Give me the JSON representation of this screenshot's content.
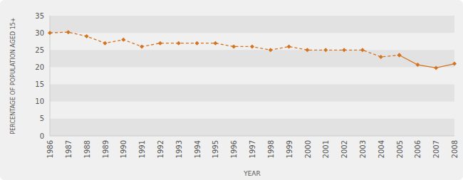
{
  "chart_data": {
    "type": "line",
    "x_label": "YEAR",
    "y_label": "PERCENTAGE OF POPULATION AGED 15+",
    "categories": [
      "1986",
      "1987",
      "1988",
      "1989",
      "1990",
      "1991",
      "1992",
      "1993",
      "1994",
      "1995",
      "1996",
      "1997",
      "1998",
      "1999",
      "2000",
      "2001",
      "2002",
      "2003",
      "2004",
      "2005",
      "2006",
      "2007",
      "2008"
    ],
    "series": [
      {
        "color": "#d4731f",
        "line_style": "dashed",
        "marker": "diamond",
        "values": [
          30,
          30.2,
          29,
          27,
          28,
          26,
          27,
          27,
          27,
          27,
          26,
          26,
          25,
          26,
          25,
          25,
          25,
          25,
          23,
          23.5,
          null,
          null,
          null
        ]
      },
      {
        "color": "#d4731f",
        "line_style": "solid",
        "marker": "diamond",
        "values": [
          null,
          null,
          null,
          null,
          null,
          null,
          null,
          null,
          null,
          null,
          null,
          null,
          null,
          null,
          null,
          null,
          null,
          null,
          null,
          23.5,
          20.7,
          19.8,
          21
        ]
      }
    ],
    "ylim": [
      0,
      35
    ],
    "yticks": [
      0,
      5,
      10,
      15,
      20,
      25,
      30,
      35
    ],
    "grid": true
  }
}
